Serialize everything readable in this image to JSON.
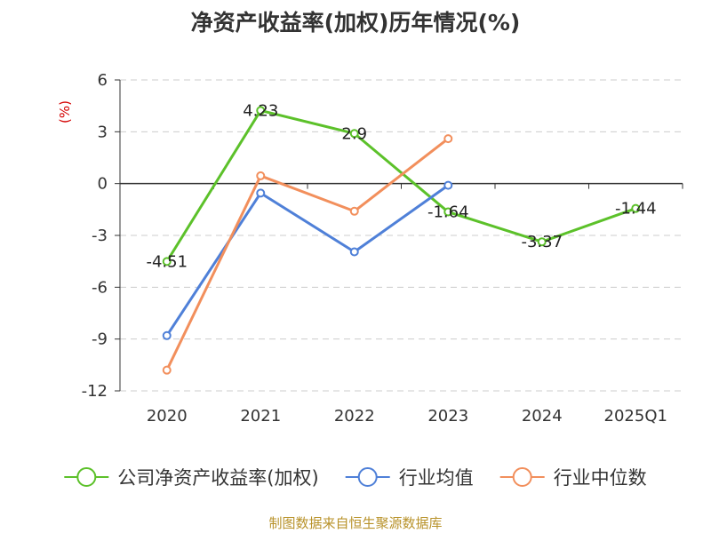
{
  "title": "净资产收益率(加权)历年情况(%)",
  "source": "制图数据来自恒生聚源数据库",
  "chart_data": {
    "type": "line",
    "title": "净资产收益率(加权)历年情况(%)",
    "ylabel": "(%)",
    "categories": [
      "2020",
      "2021",
      "2022",
      "2023",
      "2024",
      "2025Q1"
    ],
    "ylim": [
      -12,
      6
    ],
    "yticks": [
      6,
      3,
      0,
      -3,
      -6,
      -9,
      -12
    ],
    "grid": true,
    "legend": "bottom",
    "series": [
      {
        "name": "公司净资产收益率(加权)",
        "color": "#5cc12a",
        "values": [
          -4.51,
          4.23,
          2.9,
          -1.64,
          -3.37,
          -1.44
        ],
        "labels": [
          "-4.51",
          "4.23",
          "2.9",
          "-1.64",
          "-3.37",
          "-1.44"
        ]
      },
      {
        "name": "行业均值",
        "color": "#4f80d8",
        "values": [
          -8.8,
          -0.55,
          -3.95,
          -0.1,
          null,
          null
        ]
      },
      {
        "name": "行业中位数",
        "color": "#f28f5c",
        "values": [
          -10.8,
          0.45,
          -1.6,
          2.6,
          null,
          null
        ]
      }
    ]
  }
}
